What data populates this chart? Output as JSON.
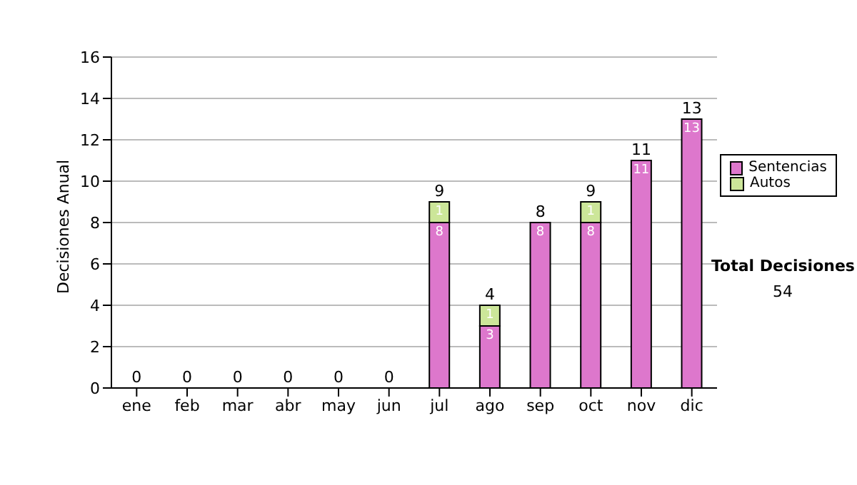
{
  "chart_data": {
    "type": "bar",
    "stacked": true,
    "categories": [
      "ene",
      "feb",
      "mar",
      "abr",
      "may",
      "jun",
      "jul",
      "ago",
      "sep",
      "oct",
      "nov",
      "dic"
    ],
    "series": [
      {
        "name": "Sentencias",
        "color": "#dd77cc",
        "values": [
          0,
          0,
          0,
          0,
          0,
          0,
          8,
          3,
          8,
          8,
          11,
          13
        ],
        "value_labels": [
          null,
          null,
          null,
          null,
          null,
          null,
          "8",
          "3",
          "8",
          "8",
          "11",
          "13"
        ]
      },
      {
        "name": "Autos",
        "color": "#cce699",
        "values": [
          0,
          0,
          0,
          0,
          0,
          0,
          1,
          1,
          0,
          1,
          0,
          0
        ],
        "value_labels": [
          null,
          null,
          null,
          null,
          null,
          null,
          "1",
          "1",
          null,
          "1",
          null,
          null
        ]
      }
    ],
    "totals": [
      "0",
      "0",
      "0",
      "0",
      "0",
      "0",
      "9",
      "4",
      "8",
      "9",
      "11",
      "13"
    ],
    "ylabel": "Decisiones Anual",
    "ylim": [
      0,
      16
    ],
    "yticks": [
      0,
      2,
      4,
      6,
      8,
      10,
      12,
      14,
      16
    ],
    "grid": "y",
    "legend": "right",
    "annotations": [
      "Total Decisiones",
      "54"
    ]
  }
}
